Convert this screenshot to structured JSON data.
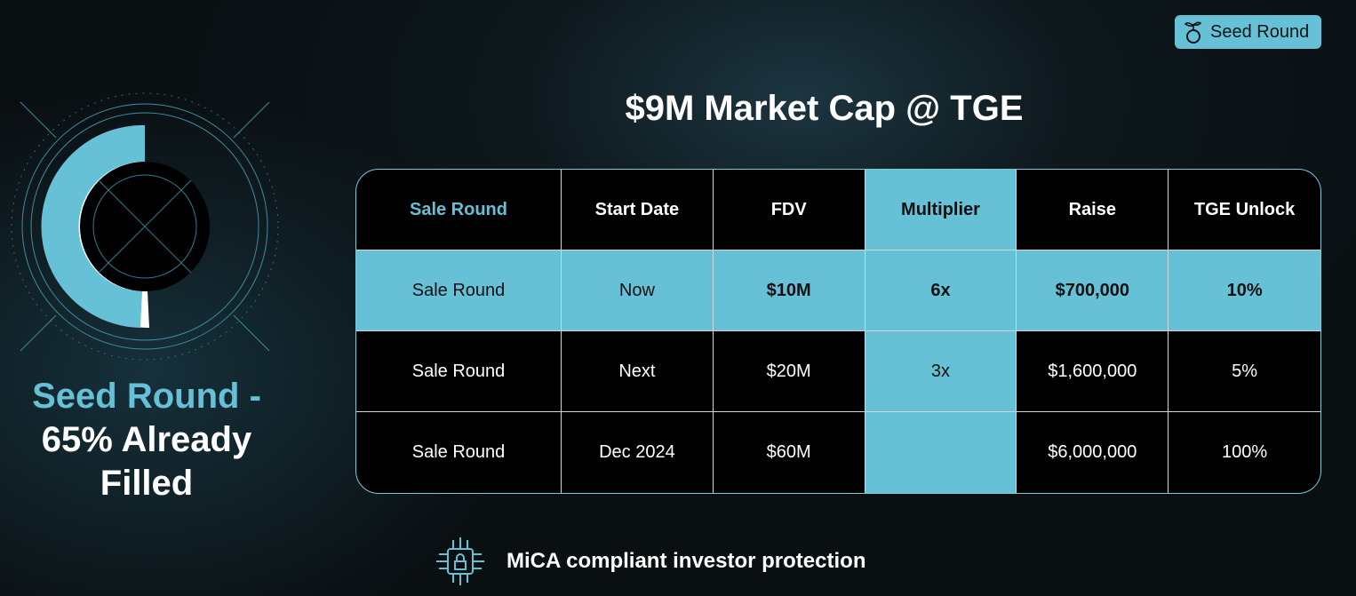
{
  "badge": {
    "label": "Seed Round"
  },
  "progress": {
    "title": "Seed Round -",
    "subtitle": "65% Already Filled"
  },
  "heading": "$9M Market Cap @ TGE",
  "table": {
    "headers": [
      "Sale Round",
      "Start Date",
      "FDV",
      "Multiplier",
      "Raise",
      "TGE Unlock"
    ],
    "rows": [
      [
        "Sale Round",
        "Now",
        "$10M",
        "6x",
        "$700,000",
        "10%"
      ],
      [
        "Sale Round",
        "Next",
        "$20M",
        "3x",
        "$1,600,000",
        "5%"
      ],
      [
        "Sale Round",
        "Dec 2024",
        "$60M",
        null,
        "$6,000,000",
        "100%"
      ]
    ]
  },
  "footer": {
    "text": "MiCA compliant investor protection"
  }
}
